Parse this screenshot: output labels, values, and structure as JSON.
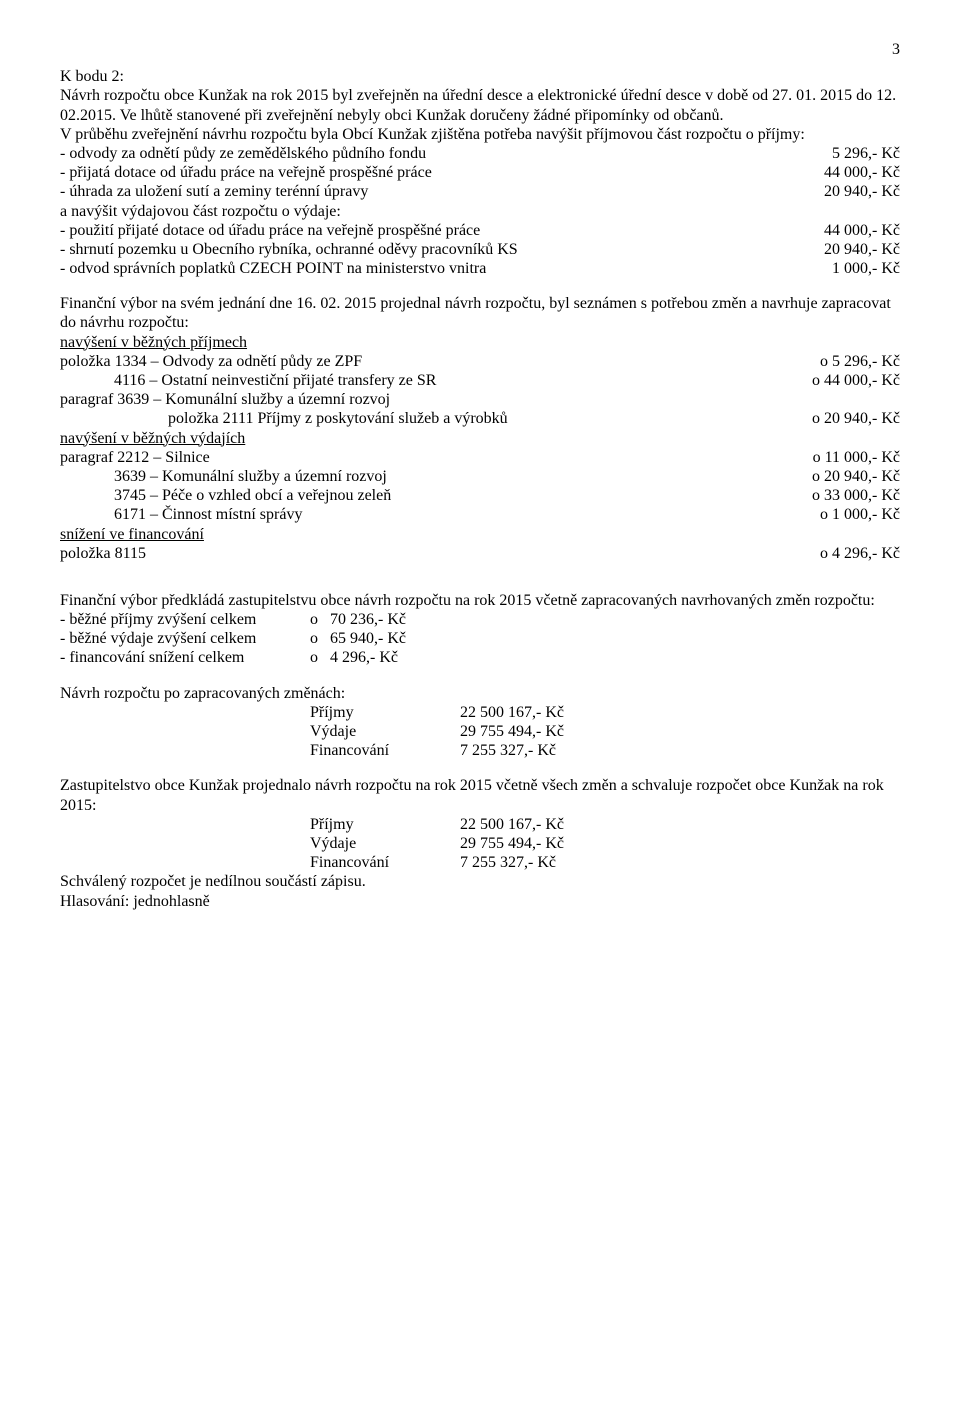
{
  "page_number": "3",
  "s1": {
    "heading": "K bodu 2:",
    "p1": "Návrh rozpočtu obce Kunžak na rok 2015 byl zveřejněn na úřední desce a elektronické úřední desce v době od 27. 01. 2015 do 12. 02.2015. Ve lhůtě stanovené při zveřejnění nebyly obci Kunžak doručeny žádné připomínky od občanů.",
    "p2": "V průběhu zveřejnění návrhu rozpočtu byla Obcí Kunžak zjištěna potřeba navýšit příjmovou část rozpočtu o příjmy:",
    "rows1": [
      {
        "l": "- odvody za odnětí půdy ze zemědělského půdního fondu",
        "v": "5 296,- Kč"
      },
      {
        "l": "- přijatá dotace od úřadu práce na veřejně prospěšné práce",
        "v": "44 000,- Kč"
      },
      {
        "l": "- úhrada za uložení sutí a zeminy terénní úpravy",
        "v": "20 940,- Kč"
      }
    ],
    "p3": "a navýšit výdajovou část rozpočtu o výdaje:",
    "rows2": [
      {
        "l": "- použití přijaté dotace od úřadu práce na veřejně prospěšné práce",
        "v": "44 000,- Kč"
      },
      {
        "l": "- shrnutí pozemku u Obecního rybníka, ochranné oděvy pracovníků KS",
        "v": "20 940,- Kč"
      },
      {
        "l": "- odvod správních poplatků CZECH POINT na ministerstvo vnitra",
        "v": "1 000,- Kč"
      }
    ]
  },
  "s2": {
    "p1": "Finanční výbor na svém jednání dne 16. 02. 2015 projednal návrh rozpočtu, byl seznámen s potřebou změn a navrhuje zapracovat do návrhu rozpočtu:",
    "h1": "navýšení v běžných příjmech",
    "rows1": [
      {
        "l": "položka 1334 – Odvody za odnětí půdy ze ZPF",
        "v": "o     5 296,- Kč"
      },
      {
        "l": "4116 – Ostatní neinvestiční přijaté transfery ze SR",
        "indent": 1,
        "v": "o   44 000,- Kč"
      }
    ],
    "p2": "paragraf 3639 – Komunální služby a územní rozvoj",
    "rows2": [
      {
        "l": "položka 2111 Příjmy z poskytování služeb a výrobků",
        "indent": 2,
        "v": "o   20 940,- Kč"
      }
    ],
    "h2": "navýšení v běžných výdajích",
    "rows3": [
      {
        "l": "paragraf 2212 – Silnice",
        "v": "o   11 000,- Kč"
      },
      {
        "l": "3639 – Komunální služby a územní rozvoj",
        "indent": 1,
        "v": "o   20 940,- Kč"
      },
      {
        "l": "3745 – Péče o vzhled obcí a veřejnou zeleň",
        "indent": 1,
        "v": "o   33 000,- Kč"
      },
      {
        "l": "6171 – Činnost místní správy",
        "indent": 1,
        "v": "o     1 000,- Kč"
      }
    ],
    "h3": "snížení ve financování",
    "rows4": [
      {
        "l": "položka 8115",
        "v": "o     4 296,- Kč"
      }
    ]
  },
  "s3": {
    "p1": "Finanční výbor předkládá zastupitelstvu obce návrh rozpočtu na rok 2015 včetně zapracovaných navrhovaných změn rozpočtu:",
    "rows": [
      {
        "l": "- běžné příjmy zvýšení celkem",
        "m": "o",
        "v": "70 236,- Kč"
      },
      {
        "l": "- běžné výdaje zvýšení celkem",
        "m": "o",
        "v": "65 940,- Kč"
      },
      {
        "l": "- financování snížení celkem",
        "m": "o",
        "v": "4 296,- Kč"
      }
    ]
  },
  "s4": {
    "p1": "Návrh rozpočtu po zapracovaných změnách:",
    "rows": [
      {
        "l": "Příjmy",
        "v": "22 500 167,- Kč"
      },
      {
        "l": "Výdaje",
        "v": "29 755 494,- Kč"
      },
      {
        "l": "Financování",
        "v": "7 255 327,- Kč"
      }
    ]
  },
  "s5": {
    "p1": "Zastupitelstvo obce Kunžak projednalo návrh rozpočtu na rok 2015 včetně všech změn a schvaluje rozpočet obce Kunžak na rok 2015:",
    "rows": [
      {
        "l": "Příjmy",
        "v": "22 500 167,- Kč"
      },
      {
        "l": "Výdaje",
        "v": "29 755 494,- Kč"
      },
      {
        "l": "Financování",
        "v": "7 255 327,- Kč"
      }
    ],
    "p2": "Schválený rozpočet je nedílnou součástí zápisu.",
    "p3": "Hlasování: jednohlasně"
  }
}
